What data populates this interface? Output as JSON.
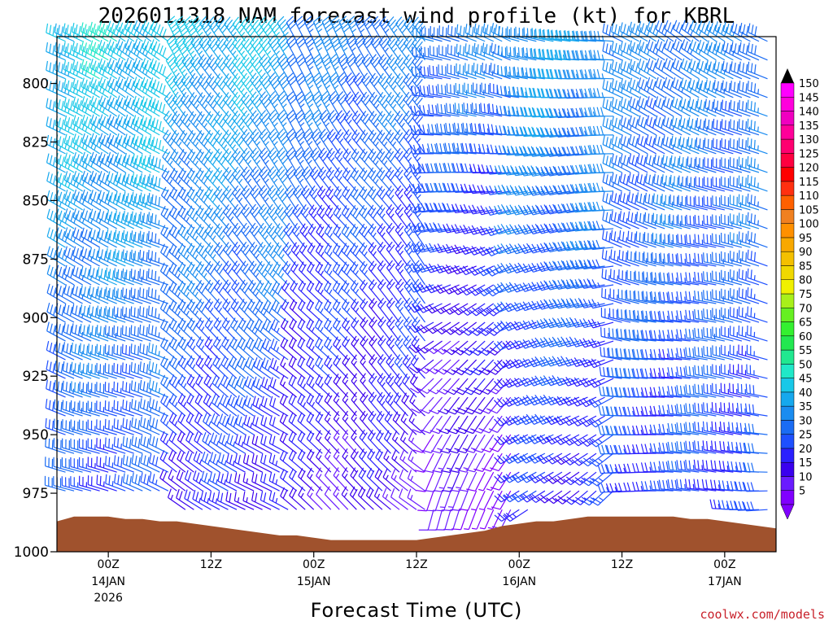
{
  "chart_data": {
    "type": "wind-barb time-height",
    "title": "2026011318 NAM forecast wind profile (kt) for KBRL",
    "xlabel": "Forecast Time (UTC)",
    "ylabel": "",
    "credit": "coolwx.com/models",
    "y_axis": {
      "ticks": [
        800,
        825,
        850,
        875,
        900,
        925,
        950,
        975,
        1000
      ],
      "ylim": [
        780,
        1000
      ],
      "scale": "linear pressure, inverted"
    },
    "x_axis": {
      "ticks": [
        {
          "hour": 0,
          "label": "00Z",
          "sublabel": "14JAN",
          "sublabel2": "2026"
        },
        {
          "hour": 12,
          "label": "12Z",
          "sublabel": "",
          "sublabel2": ""
        },
        {
          "hour": 24,
          "label": "00Z",
          "sublabel": "15JAN",
          "sublabel2": ""
        },
        {
          "hour": 36,
          "label": "12Z",
          "sublabel": "",
          "sublabel2": ""
        },
        {
          "hour": 48,
          "label": "00Z",
          "sublabel": "16JAN",
          "sublabel2": ""
        },
        {
          "hour": 60,
          "label": "12Z",
          "sublabel": "",
          "sublabel2": ""
        },
        {
          "hour": 72,
          "label": "00Z",
          "sublabel": "17JAN",
          "sublabel2": ""
        }
      ],
      "xlim": [
        -6,
        78
      ],
      "time_step_hours": 1
    },
    "terrain": {
      "color": "#a0522d",
      "surface_pressure": [
        [
          -6,
          987
        ],
        [
          -5,
          986
        ],
        [
          -4,
          985
        ],
        [
          -2,
          985
        ],
        [
          0,
          985
        ],
        [
          2,
          986
        ],
        [
          4,
          986
        ],
        [
          6,
          987
        ],
        [
          8,
          987
        ],
        [
          10,
          988
        ],
        [
          12,
          989
        ],
        [
          14,
          990
        ],
        [
          16,
          991
        ],
        [
          18,
          992
        ],
        [
          20,
          993
        ],
        [
          22,
          993
        ],
        [
          24,
          994
        ],
        [
          26,
          995
        ],
        [
          28,
          995
        ],
        [
          30,
          995
        ],
        [
          32,
          995
        ],
        [
          34,
          995
        ],
        [
          36,
          995
        ],
        [
          38,
          994
        ],
        [
          40,
          993
        ],
        [
          42,
          992
        ],
        [
          44,
          991
        ],
        [
          46,
          989
        ],
        [
          48,
          988
        ],
        [
          50,
          987
        ],
        [
          52,
          987
        ],
        [
          54,
          986
        ],
        [
          56,
          985
        ],
        [
          58,
          985
        ],
        [
          60,
          985
        ],
        [
          62,
          985
        ],
        [
          64,
          985
        ],
        [
          66,
          985
        ],
        [
          68,
          986
        ],
        [
          70,
          986
        ],
        [
          72,
          987
        ],
        [
          74,
          988
        ],
        [
          76,
          989
        ],
        [
          78,
          990
        ]
      ]
    },
    "wind_field": {
      "description": "Wind speed/direction sampled by time band; NW flow 40-50 kt early, weaker W-SW flow near 15JAN 12Z, strengthening SW flow late.",
      "regimes": [
        {
          "t_from": -6,
          "t_to": 8,
          "speed_top": 48,
          "speed_bottom": 25,
          "dir_top": 300,
          "dir_bottom": 290
        },
        {
          "t_from": 8,
          "t_to": 22,
          "speed_top": 45,
          "speed_bottom": 20,
          "dir_top": 330,
          "dir_bottom": 300
        },
        {
          "t_from": 22,
          "t_to": 38,
          "speed_top": 35,
          "speed_bottom": 15,
          "dir_top": 330,
          "dir_bottom": 310
        },
        {
          "t_from": 38,
          "t_to": 48,
          "speed_top": 35,
          "speed_bottom": 8,
          "dir_top": 290,
          "dir_bottom": 200
        },
        {
          "t_from": 48,
          "t_to": 60,
          "speed_top": 40,
          "speed_bottom": 20,
          "dir_top": 280,
          "dir_bottom": 230
        },
        {
          "t_from": 60,
          "t_to": 78,
          "speed_top": 35,
          "speed_bottom": 25,
          "dir_top": 300,
          "dir_bottom": 270
        }
      ]
    },
    "colorbar": {
      "levels": [
        5,
        10,
        15,
        20,
        25,
        30,
        35,
        40,
        45,
        50,
        55,
        60,
        65,
        70,
        75,
        80,
        85,
        90,
        95,
        100,
        105,
        110,
        115,
        120,
        125,
        130,
        135,
        140,
        145,
        150
      ],
      "colors": [
        "#8000ff",
        "#6a1cff",
        "#3a00ee",
        "#2a20ff",
        "#1e50ff",
        "#1a6cf4",
        "#1a8cf0",
        "#16a8ee",
        "#18c8e8",
        "#20e8c8",
        "#20e890",
        "#22e850",
        "#34f030",
        "#66f022",
        "#a8f01a",
        "#f0f000",
        "#f0d800",
        "#f4c000",
        "#f8a800",
        "#ff9000",
        "#f08020",
        "#ff6000",
        "#ff3010",
        "#ff0000",
        "#ff0040",
        "#ff0070",
        "#ff0099",
        "#f000c0",
        "#ff00dc",
        "#ff00ff"
      ]
    }
  }
}
